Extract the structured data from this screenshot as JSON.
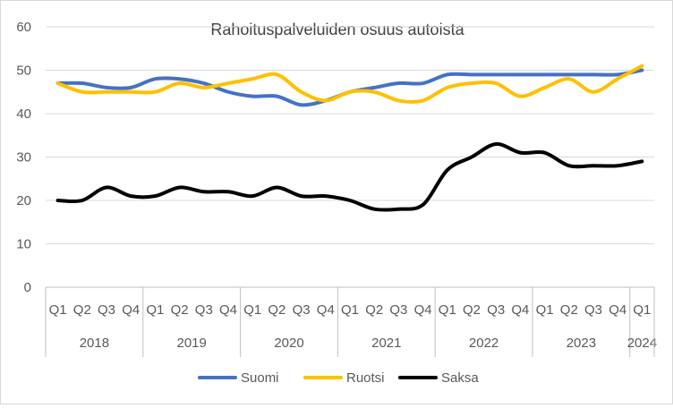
{
  "chart_data": {
    "type": "line",
    "title": "Rahoituspalveluiden osuus autoista",
    "xlabel": "",
    "ylabel": "",
    "ylim": [
      0,
      60
    ],
    "yticks": [
      0,
      10,
      20,
      30,
      40,
      50,
      60
    ],
    "grid": "horizontal",
    "legend_position": "bottom",
    "categories": [
      "Q1",
      "Q2",
      "Q3",
      "Q4",
      "Q1",
      "Q2",
      "Q3",
      "Q4",
      "Q1",
      "Q2",
      "Q3",
      "Q4",
      "Q1",
      "Q2",
      "Q3",
      "Q4",
      "Q1",
      "Q2",
      "Q3",
      "Q4",
      "Q1",
      "Q2",
      "Q3",
      "Q4",
      "Q1"
    ],
    "years": [
      {
        "label": "2018",
        "count": 4
      },
      {
        "label": "2019",
        "count": 4
      },
      {
        "label": "2020",
        "count": 4
      },
      {
        "label": "2021",
        "count": 4
      },
      {
        "label": "2022",
        "count": 4
      },
      {
        "label": "2023",
        "count": 4
      },
      {
        "label": "2024",
        "count": 1
      }
    ],
    "series": [
      {
        "name": "Suomi",
        "color": "#4472c4",
        "values": [
          47,
          47,
          46,
          46,
          48,
          48,
          47,
          45,
          44,
          44,
          42,
          43,
          45,
          46,
          47,
          47,
          49,
          49,
          49,
          49,
          49,
          49,
          49,
          49,
          50
        ]
      },
      {
        "name": "Ruotsi",
        "color": "#ffc000",
        "values": [
          47,
          45,
          45,
          45,
          45,
          47,
          46,
          47,
          48,
          49,
          45,
          43,
          45,
          45,
          43,
          43,
          46,
          47,
          47,
          44,
          46,
          48,
          45,
          48,
          51
        ]
      },
      {
        "name": "Saksa",
        "color": "#000000",
        "values": [
          20,
          20,
          23,
          21,
          21,
          23,
          22,
          22,
          21,
          23,
          21,
          21,
          20,
          18,
          18,
          19,
          27,
          30,
          33,
          31,
          31,
          28,
          28,
          28,
          29
        ]
      }
    ]
  }
}
